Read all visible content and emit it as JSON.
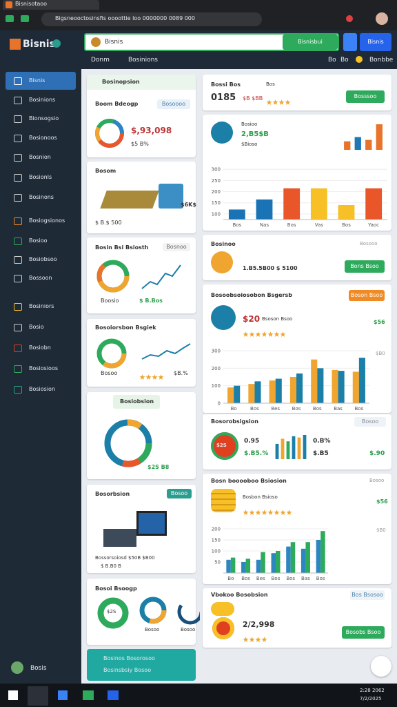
{
  "browser": {
    "tab": "Bisnisotaoo",
    "url": "Bigsneooctosinsfis oooottie loo 0000000 0089 000"
  },
  "header": {
    "logo": "Bisnis",
    "search": "Bisnis",
    "search_button": "Bisnisbui",
    "action_button": "Bisnis",
    "tabs": [
      "Donm",
      "Bosinions"
    ],
    "status": [
      "Bo",
      "Bo",
      "Bonbbe"
    ]
  },
  "sidebar": {
    "items": [
      "Bisnis",
      "Bosinions",
      "Bionsogsio",
      "Bosionoos",
      "Bosnion",
      "Bosionls",
      "Bosinons",
      "Bosiogsionos",
      "Bosioo",
      "Bosiobsoo",
      "Bossoon",
      "Bosiniors",
      "Bosio",
      "Bosiobn",
      "Bosiosioos",
      "Bosiosion"
    ],
    "user": "Bosis"
  },
  "left_cards": [
    {
      "header": "Bosinopsion",
      "title": "Boom Bdeogp",
      "button": "Bosoooo",
      "value": "$,93,098",
      "sub": "$5 B%"
    },
    {
      "title": "Bosom",
      "badge": "$6K$",
      "footer": "$ B.$ 500"
    },
    {
      "title": "Bosin Bsi Bsiosth",
      "badge": "Bosnoo",
      "footer_left": "Boosio",
      "footer_right": "$ B.Bos"
    },
    {
      "title": "Bosoiorsbon Bsgiek",
      "footer_left": "Bosoo",
      "footer_right": "$B.%"
    },
    {
      "tag": "Bosiobsion",
      "value": "$2S B8"
    },
    {
      "title": "Bosorbsion",
      "button": "Bosoo",
      "caption": "Bossorsoiosd $50B $B00",
      "footer": "$ B.B0 B"
    },
    {
      "title": "Bosoi Bsoogp",
      "labels": [
        "$2S",
        "Bosoo",
        "Bosoo"
      ]
    },
    {
      "lines": [
        "Bosinos Bosorosoo",
        "Bosinsbsiy Bosoo"
      ]
    }
  ],
  "right_panels": [
    {
      "title": "Bossi Bos",
      "tag": "Bos",
      "value": "0185",
      "sub": "$B $BB",
      "button": "Bosssoo"
    },
    {
      "title": "Bosioo",
      "value": "2,B5$B",
      "sub": "$Bioso"
    },
    {
      "title": "Bosinoo",
      "badge": "Bosooo",
      "value": "1.B5.5B00 $ 5100",
      "button": "Bons Bsoo"
    },
    {
      "title": "Bosoobsoiosobon Bsgersb",
      "button": "Boson Bsoo",
      "value": "$20",
      "sub": "Bsoson Bsoo",
      "side": "$56",
      "side2": "$B0"
    },
    {
      "title": "Bosorobsigsion",
      "input": "Bosoo",
      "badge": "$2S",
      "value": "0.95",
      "sub": "$.B5.%",
      "right_top": "0.B%",
      "right_mid": "$.B5",
      "right_end": "$.90"
    },
    {
      "title": "Bosn booooboo Bsiosion",
      "tag": "Bosoo",
      "sub": "Bosbon Bsioso",
      "side": "$56",
      "side2": "$B0"
    },
    {
      "title": "Vbokoo Bosobsion",
      "tag": "Bos Bsosoo",
      "value": "2/2,998",
      "button": "Bosobs Bsoo"
    }
  ],
  "charts": [
    {
      "type": "bar",
      "values": [
        30,
        45,
        35,
        90
      ],
      "colors": [
        "#e8732a",
        "#1f77b4",
        "#e8732a",
        "#e8732a"
      ]
    },
    {
      "type": "bar",
      "categories": [
        "Bos",
        "Nas",
        "Bos",
        "Vas",
        "Bos",
        "Yaoc"
      ],
      "values": [
        120,
        165,
        215,
        215,
        140,
        215
      ],
      "colors": [
        "#1a73b5",
        "#1a73b5",
        "#e8562a",
        "#f6c026",
        "#f6c026",
        "#e8562a"
      ],
      "ylim": [
        75,
        310
      ],
      "yticks": [
        100,
        150,
        200,
        250,
        300
      ]
    },
    {
      "type": "bar",
      "categories": [
        "Bo",
        "Bos",
        "Bes",
        "Bos",
        "Bos",
        "Bas",
        "Bos"
      ],
      "series": [
        {
          "color": "#f0a530",
          "values": [
            90,
            110,
            130,
            150,
            250,
            190,
            180
          ]
        },
        {
          "color": "#1b7fa8",
          "values": [
            100,
            125,
            140,
            170,
            200,
            185,
            260
          ]
        }
      ],
      "ylim": [
        0,
        300
      ],
      "yticks": [
        0,
        100,
        200,
        300
      ]
    },
    {
      "type": "bar",
      "values": [
        60,
        80,
        70,
        90,
        85,
        95
      ],
      "colors": [
        "#1b7fa8",
        "#f0a530",
        "#2eaa5c",
        "#1b7fa8",
        "#f0a530",
        "#1b7fa8"
      ]
    },
    {
      "type": "bar",
      "categories": [
        "Bo",
        "Bos",
        "Bes",
        "Bos",
        "Bos",
        "Bas",
        "Bos"
      ],
      "series": [
        {
          "color": "#2e86c1",
          "values": [
            60,
            50,
            60,
            90,
            120,
            110,
            150
          ]
        },
        {
          "color": "#2eaa5c",
          "values": [
            70,
            65,
            95,
            100,
            140,
            140,
            190
          ]
        }
      ],
      "ylim": [
        0,
        200
      ],
      "yticks": [
        50,
        100,
        150,
        200
      ]
    }
  ],
  "taskbar": {
    "time": "2:28 2062",
    "date": "7/2/2025"
  }
}
